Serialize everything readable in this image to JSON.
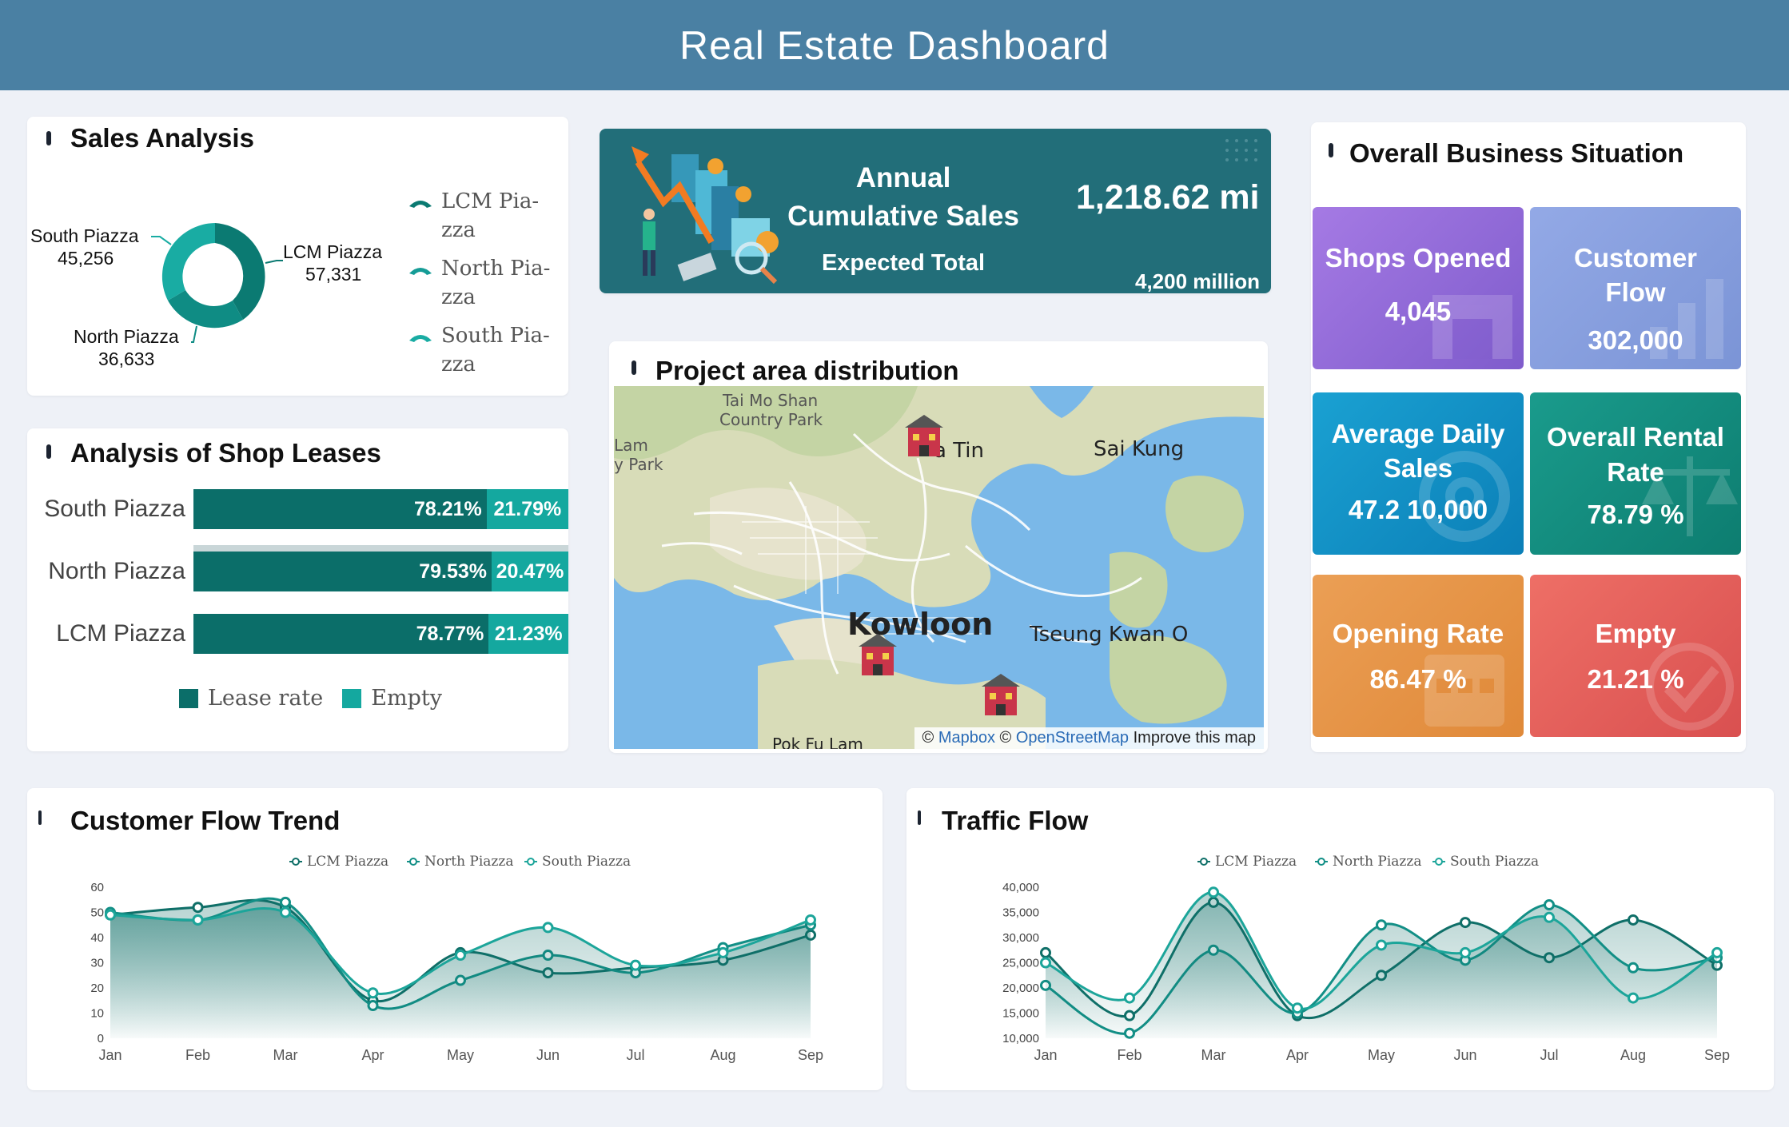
{
  "header": {
    "title": "Real Estate Dashboard"
  },
  "sales_analysis": {
    "title": "Sales Analysis",
    "labels": [
      {
        "name": "LCM Piazza",
        "value": "57,331"
      },
      {
        "name": "South Piazza",
        "value": "45,256"
      },
      {
        "name": "North Piazza",
        "value": "36,633"
      }
    ],
    "legend": [
      "LCM Pia-",
      "zza",
      "North Pia-",
      "zza",
      "South Pia-",
      "zza"
    ],
    "colors": [
      "#0b7a72",
      "#159c96",
      "#19aca3"
    ]
  },
  "annual_banner": {
    "title_line1": "Annual",
    "title_line2": "Cumulative Sales",
    "value": "1,218.62 mi",
    "subtitle": "Expected Total",
    "expected_value": "4,200 million"
  },
  "business": {
    "title": "Overall Business Situation",
    "tiles": [
      {
        "label_lines": [
          "Shops Opened"
        ],
        "value": "4,045",
        "icon": "shop-icon"
      },
      {
        "label_lines": [
          "Customer",
          "Flow"
        ],
        "value": "302,000",
        "icon": "chart-icon"
      },
      {
        "label_lines": [
          "Average Daily",
          "Sales"
        ],
        "value": "47.2 10,000",
        "icon": "at-icon"
      },
      {
        "label_lines": [
          "Overall Rental",
          "Rate"
        ],
        "value": "78.79 %",
        "icon": "scale-icon"
      },
      {
        "label_lines": [
          "Opening Rate"
        ],
        "value": "86.47 %",
        "icon": "calendar-icon"
      },
      {
        "label_lines": [
          "Empty"
        ],
        "value": "21.21 %",
        "icon": "check-icon"
      }
    ]
  },
  "leases": {
    "title": "Analysis of Shop Leases",
    "rows": [
      {
        "name": "South Piazza",
        "lease": "78.21%",
        "empty": "21.79%",
        "lease_value": 78.21
      },
      {
        "name": "North Piazza",
        "lease": "79.53%",
        "empty": "20.47%",
        "lease_value": 79.53
      },
      {
        "name": "LCM Piazza",
        "lease": "78.77%",
        "empty": "21.23%",
        "lease_value": 78.77
      }
    ],
    "legend": {
      "lease": "Lease rate",
      "empty": "Empty"
    },
    "colors": {
      "lease": "#0b6e69",
      "empty": "#14a89f"
    }
  },
  "map": {
    "title": "Project area distribution",
    "places": [
      "Tai Mo Shan",
      "Country Park",
      "Lam",
      "y Park",
      "a Tin",
      "Sai Kung",
      "Kowloon",
      "Tseung Kwan O",
      "Pok Fu Lam"
    ],
    "attribution": {
      "prefix": "©",
      "mapbox": "Mapbox",
      "sep": "©",
      "osm": "OpenStreetMap",
      "improve": "Improve this map"
    }
  },
  "chart_data": [
    {
      "type": "area",
      "title": "Customer Flow Trend",
      "categories": [
        "Jan",
        "Feb",
        "Mar",
        "Apr",
        "May",
        "Jun",
        "Jul",
        "Aug",
        "Sep"
      ],
      "ylim": [
        0,
        60
      ],
      "yticks": [
        "0",
        "10",
        "20",
        "30",
        "40",
        "50",
        "60"
      ],
      "legend_position": "top-center",
      "series": [
        {
          "name": "LCM Piazza",
          "values": [
            49,
            52,
            52,
            15,
            34,
            26,
            28,
            31,
            41
          ],
          "color": "#0f6f68"
        },
        {
          "name": "North Piazza",
          "values": [
            50,
            47,
            54,
            13,
            23,
            33,
            26,
            36,
            45
          ],
          "color": "#128f86"
        },
        {
          "name": "South Piazza",
          "values": [
            49,
            47,
            50,
            18,
            33,
            44,
            29,
            34,
            47
          ],
          "color": "#1ca59a"
        }
      ]
    },
    {
      "type": "area",
      "title": "Traffic Flow",
      "categories": [
        "Jan",
        "Feb",
        "Mar",
        "Apr",
        "May",
        "Jun",
        "Jul",
        "Aug",
        "Sep"
      ],
      "ylim": [
        10000,
        40000
      ],
      "yticks": [
        "10,000",
        "15,000",
        "20,000",
        "25,000",
        "30,000",
        "35,000",
        "40,000"
      ],
      "legend_position": "top-center",
      "series": [
        {
          "name": "LCM Piazza",
          "values": [
            27000,
            14500,
            37000,
            14500,
            22500,
            33000,
            26000,
            33500,
            24500
          ],
          "color": "#0f6f68"
        },
        {
          "name": "North Piazza",
          "values": [
            20500,
            11000,
            27500,
            15000,
            32500,
            25500,
            36500,
            24000,
            26000
          ],
          "color": "#128f86"
        },
        {
          "name": "South Piazza",
          "values": [
            25000,
            18000,
            39000,
            16000,
            28500,
            27000,
            34000,
            18000,
            27000
          ],
          "color": "#1ca59a"
        }
      ]
    }
  ]
}
